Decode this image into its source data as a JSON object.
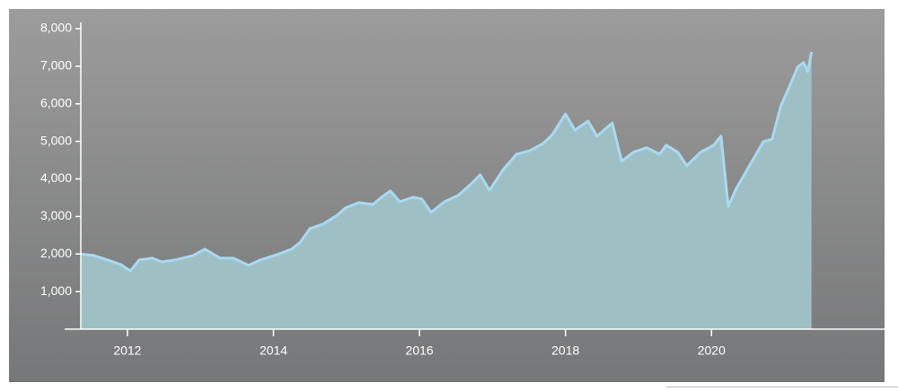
{
  "chart_data": {
    "type": "area",
    "x": [
      2011.36,
      2011.54,
      2011.73,
      2011.91,
      2012.04,
      2012.16,
      2012.34,
      2012.47,
      2012.65,
      2012.9,
      2013.06,
      2013.27,
      2013.45,
      2013.66,
      2013.82,
      2014.07,
      2014.25,
      2014.37,
      2014.5,
      2014.68,
      2014.87,
      2014.99,
      2015.17,
      2015.36,
      2015.48,
      2015.6,
      2015.73,
      2015.91,
      2016.03,
      2016.16,
      2016.34,
      2016.53,
      2016.71,
      2016.83,
      2016.96,
      2017.14,
      2017.33,
      2017.51,
      2017.7,
      2017.82,
      2018.0,
      2018.13,
      2018.31,
      2018.43,
      2018.64,
      2018.77,
      2018.93,
      2019.11,
      2019.29,
      2019.38,
      2019.54,
      2019.66,
      2019.85,
      2020.03,
      2020.13,
      2020.23,
      2020.34,
      2020.52,
      2020.71,
      2020.83,
      2020.95,
      2021.05,
      2021.18,
      2021.26,
      2021.32,
      2021.37
    ],
    "values": [
      2000,
      1960,
      1840,
      1720,
      1550,
      1840,
      1890,
      1790,
      1840,
      1960,
      2130,
      1890,
      1890,
      1700,
      1840,
      2000,
      2130,
      2320,
      2680,
      2800,
      3030,
      3230,
      3370,
      3320,
      3510,
      3680,
      3390,
      3510,
      3470,
      3110,
      3390,
      3560,
      3870,
      4110,
      3700,
      4230,
      4660,
      4750,
      4950,
      5180,
      5730,
      5300,
      5540,
      5140,
      5490,
      4470,
      4710,
      4830,
      4660,
      4900,
      4710,
      4350,
      4710,
      4900,
      5140,
      3270,
      3750,
      4350,
      4990,
      5060,
      5950,
      6380,
      6980,
      7100,
      6860,
      7380
    ],
    "color": "#a9d9f2",
    "fill": "#9ec0c5",
    "xlim": [
      2011.14,
      2022.37
    ],
    "ylim": [
      0,
      8000
    ],
    "xticks": [
      2012,
      2014,
      2016,
      2018,
      2020
    ],
    "yticks": [
      {
        "value": 1000,
        "label": "1,000"
      },
      {
        "value": 2000,
        "label": "2,000"
      },
      {
        "value": 3000,
        "label": "3,000"
      },
      {
        "value": 4000,
        "label": "4,000"
      },
      {
        "value": 5000,
        "label": "5,000"
      },
      {
        "value": 6000,
        "label": "6,000"
      },
      {
        "value": 7000,
        "label": "7,000"
      },
      {
        "value": 8000,
        "label": "8,000"
      }
    ]
  }
}
